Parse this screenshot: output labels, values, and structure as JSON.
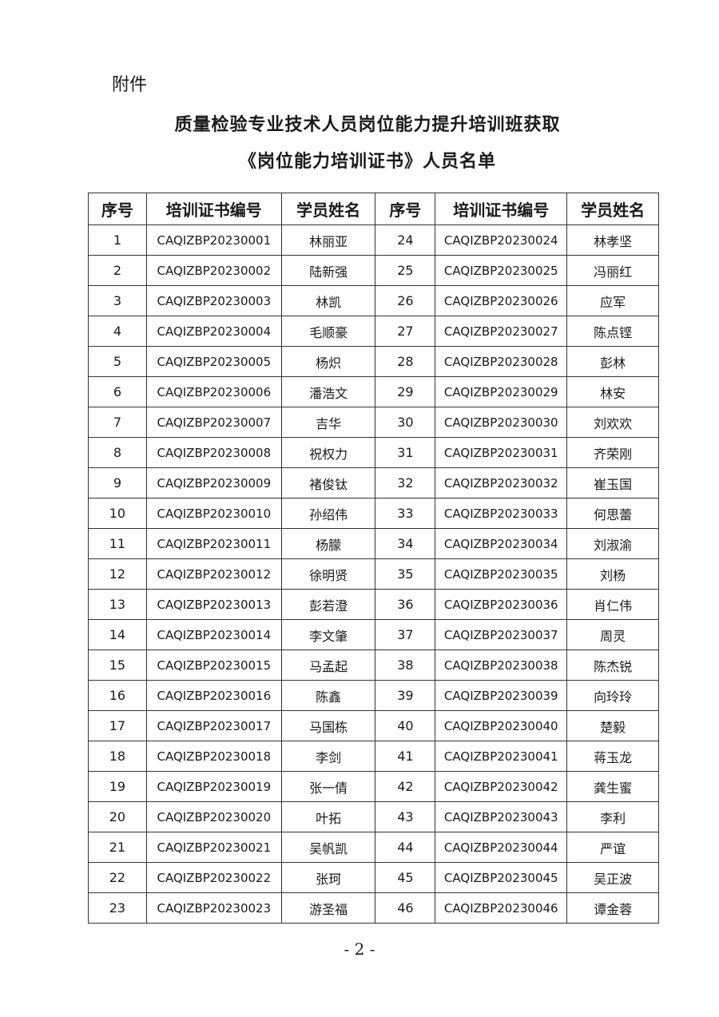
{
  "attachment_label": "附件",
  "title_line1": "质量检验专业技术人员岗位能力提升培训班获取",
  "title_line2": "《岗位能力培训证书》人员名单",
  "table": {
    "headers": [
      "序号",
      "培训证书编号",
      "学员姓名",
      "序号",
      "培训证书编号",
      "学员姓名"
    ],
    "rows": [
      [
        "1",
        "CAQIZBP20230001",
        "林丽亚",
        "24",
        "CAQIZBP20230024",
        "林孝坚"
      ],
      [
        "2",
        "CAQIZBP20230002",
        "陆新强",
        "25",
        "CAQIZBP20230025",
        "冯丽红"
      ],
      [
        "3",
        "CAQIZBP20230003",
        "林凯",
        "26",
        "CAQIZBP20230026",
        "应军"
      ],
      [
        "4",
        "CAQIZBP20230004",
        "毛顺豪",
        "27",
        "CAQIZBP20230027",
        "陈点铿"
      ],
      [
        "5",
        "CAQIZBP20230005",
        "杨炽",
        "28",
        "CAQIZBP20230028",
        "彭林"
      ],
      [
        "6",
        "CAQIZBP20230006",
        "潘浩文",
        "29",
        "CAQIZBP20230029",
        "林安"
      ],
      [
        "7",
        "CAQIZBP20230007",
        "吉华",
        "30",
        "CAQIZBP20230030",
        "刘欢欢"
      ],
      [
        "8",
        "CAQIZBP20230008",
        "祝权力",
        "31",
        "CAQIZBP20230031",
        "齐荣刚"
      ],
      [
        "9",
        "CAQIZBP20230009",
        "褚俊钛",
        "32",
        "CAQIZBP20230032",
        "崔玉国"
      ],
      [
        "10",
        "CAQIZBP20230010",
        "孙绍伟",
        "33",
        "CAQIZBP20230033",
        "何思蕾"
      ],
      [
        "11",
        "CAQIZBP20230011",
        "杨朦",
        "34",
        "CAQIZBP20230034",
        "刘淑渝"
      ],
      [
        "12",
        "CAQIZBP20230012",
        "徐明贤",
        "35",
        "CAQIZBP20230035",
        "刘杨"
      ],
      [
        "13",
        "CAQIZBP20230013",
        "彭若澄",
        "36",
        "CAQIZBP20230036",
        "肖仁伟"
      ],
      [
        "14",
        "CAQIZBP20230014",
        "李文肇",
        "37",
        "CAQIZBP20230037",
        "周灵"
      ],
      [
        "15",
        "CAQIZBP20230015",
        "马孟起",
        "38",
        "CAQIZBP20230038",
        "陈杰锐"
      ],
      [
        "16",
        "CAQIZBP20230016",
        "陈鑫",
        "39",
        "CAQIZBP20230039",
        "向玲玲"
      ],
      [
        "17",
        "CAQIZBP20230017",
        "马国栋",
        "40",
        "CAQIZBP20230040",
        "楚毅"
      ],
      [
        "18",
        "CAQIZBP20230018",
        "李剑",
        "41",
        "CAQIZBP20230041",
        "蒋玉龙"
      ],
      [
        "19",
        "CAQIZBP20230019",
        "张一倩",
        "42",
        "CAQIZBP20230042",
        "龚生蜜"
      ],
      [
        "20",
        "CAQIZBP20230020",
        "叶拓",
        "43",
        "CAQIZBP20230043",
        "李利"
      ],
      [
        "21",
        "CAQIZBP20230021",
        "吴帆凯",
        "44",
        "CAQIZBP20230044",
        "严谊"
      ],
      [
        "22",
        "CAQIZBP20230022",
        "张珂",
        "45",
        "CAQIZBP20230045",
        "吴正波"
      ],
      [
        "23",
        "CAQIZBP20230023",
        "游圣福",
        "46",
        "CAQIZBP20230046",
        "谭金蓉"
      ]
    ]
  },
  "page_number": "- 2 -"
}
